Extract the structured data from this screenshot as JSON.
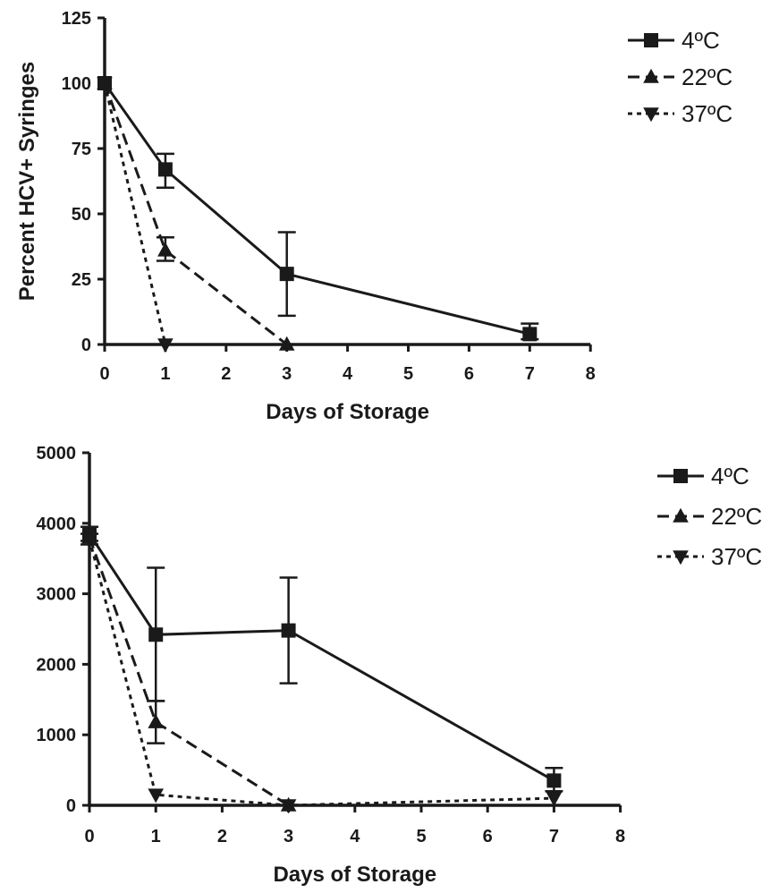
{
  "chart_data": [
    {
      "type": "line",
      "title": "",
      "xlabel": "Days of Storage",
      "ylabel": "Percent HCV+ Syringes",
      "xlim": [
        0,
        8
      ],
      "ylim": [
        0,
        125
      ],
      "x_ticks": [
        "0",
        "1",
        "2",
        "3",
        "4",
        "5",
        "6",
        "7",
        "8"
      ],
      "y_ticks": [
        "0",
        "25",
        "50",
        "75",
        "100",
        "125"
      ],
      "grid": false,
      "legend_position": "top-right",
      "series": [
        {
          "name": "4ºC",
          "marker": "square",
          "dash": "solid",
          "x": [
            0,
            1,
            3,
            7
          ],
          "y": [
            100,
            67,
            27,
            4
          ],
          "err_high": [
            100,
            73,
            43,
            8
          ],
          "err_low": [
            100,
            60,
            11,
            2
          ]
        },
        {
          "name": "22ºC",
          "marker": "triangle-up",
          "dash": "dashed",
          "x": [
            0,
            1,
            3
          ],
          "y": [
            100,
            36,
            0
          ],
          "err_high": [
            100,
            41,
            0
          ],
          "err_low": [
            100,
            32,
            0
          ]
        },
        {
          "name": "37ºC",
          "marker": "triangle-down",
          "dash": "dotted",
          "x": [
            0,
            1
          ],
          "y": [
            100,
            0
          ]
        }
      ]
    },
    {
      "type": "line",
      "title": "",
      "xlabel": "Days of Storage",
      "ylabel": "",
      "xlim": [
        0,
        8
      ],
      "ylim": [
        0,
        5000
      ],
      "x_ticks": [
        "0",
        "1",
        "2",
        "3",
        "4",
        "5",
        "6",
        "7",
        "8"
      ],
      "y_ticks": [
        "0",
        "1000",
        "2000",
        "3000",
        "4000",
        "5000"
      ],
      "grid": false,
      "legend_position": "top-right",
      "series": [
        {
          "name": "4ºC",
          "marker": "square",
          "dash": "solid",
          "x": [
            0,
            1,
            3,
            7
          ],
          "y": [
            3850,
            2420,
            2480,
            350
          ],
          "err_high": [
            3950,
            3370,
            3230,
            530
          ],
          "err_low": [
            3700,
            1480,
            1730,
            200
          ]
        },
        {
          "name": "22ºC",
          "marker": "triangle-up",
          "dash": "dashed",
          "x": [
            0,
            1,
            3
          ],
          "y": [
            3800,
            1180,
            0
          ],
          "err_high": [
            3850,
            1480,
            0
          ],
          "err_low": [
            3750,
            880,
            0
          ]
        },
        {
          "name": "37ºC",
          "marker": "triangle-down",
          "dash": "dotted",
          "x": [
            0,
            1,
            3,
            7
          ],
          "y": [
            3780,
            150,
            0,
            100
          ]
        }
      ]
    }
  ]
}
